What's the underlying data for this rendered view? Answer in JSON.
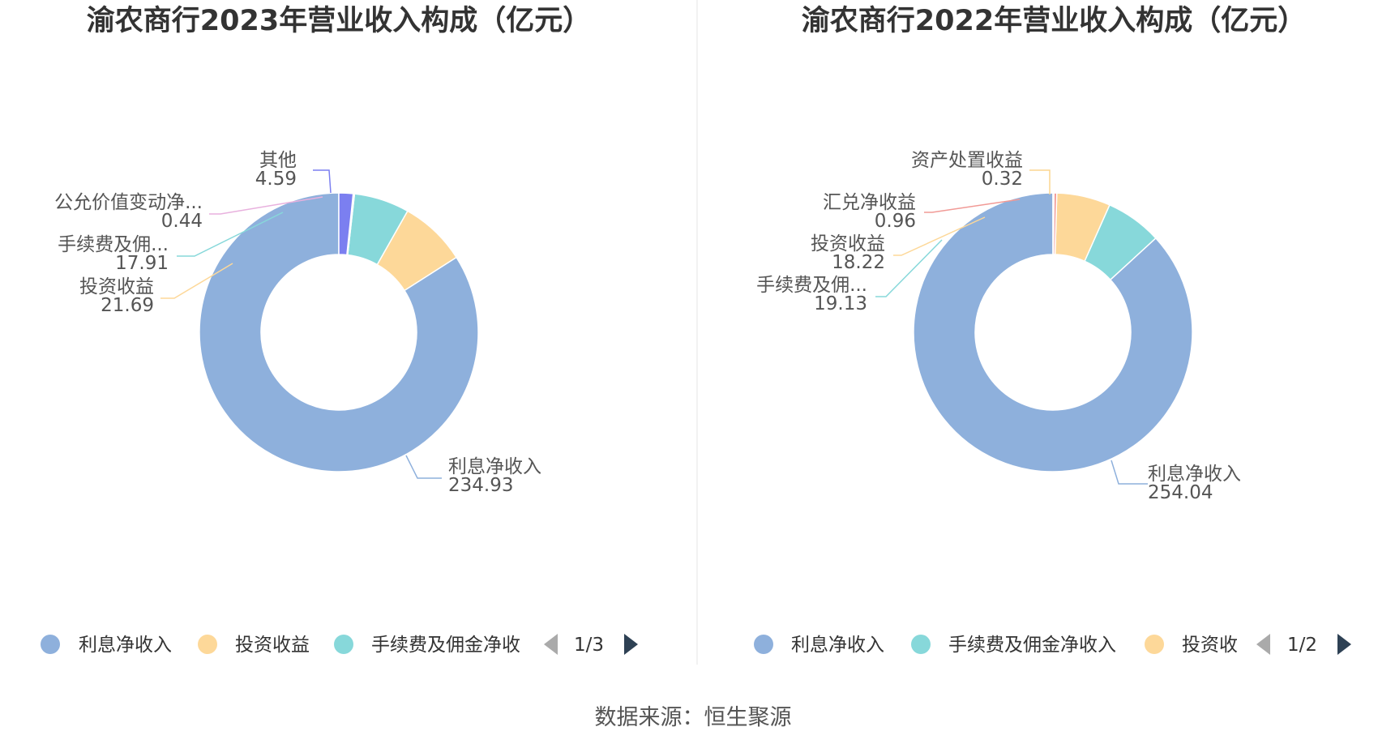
{
  "chart_data": [
    {
      "type": "pie",
      "donut": true,
      "title": "渝农商行2023年营业收入构成（亿元）",
      "series": [
        {
          "name": "利息净收入",
          "value": 234.93,
          "color": "#8eb0dc"
        },
        {
          "name": "投资收益",
          "value": 21.69,
          "color": "#fdd899"
        },
        {
          "name": "手续费及佣金净收入",
          "value": 17.91,
          "color": "#87d8da"
        },
        {
          "name": "公允价值变动净收益",
          "value": 0.44,
          "color": "#e8b1de"
        },
        {
          "name": "其他",
          "value": 4.59,
          "color": "#7b7ff0"
        }
      ],
      "labels": [
        {
          "name": "利息净收入",
          "value": "234.93"
        },
        {
          "name": "投资收益",
          "value": "21.69"
        },
        {
          "name": "手续费及佣...",
          "value": "17.91"
        },
        {
          "name": "公允价值变动净...",
          "value": "0.44"
        },
        {
          "name": "其他",
          "value": "4.59"
        }
      ],
      "legend": {
        "items": [
          "利息净收入",
          "投资收益",
          "手续费及佣金净收"
        ],
        "page": "1/3",
        "placement": "bottom"
      }
    },
    {
      "type": "pie",
      "donut": true,
      "title": "渝农商行2022年营业收入构成（亿元）",
      "series": [
        {
          "name": "利息净收入",
          "value": 254.04,
          "color": "#8eb0dc"
        },
        {
          "name": "手续费及佣金净收入",
          "value": 19.13,
          "color": "#87d8da"
        },
        {
          "name": "投资收益",
          "value": 18.22,
          "color": "#fdd899"
        },
        {
          "name": "汇兑净收益",
          "value": 0.96,
          "color": "#f19a96"
        },
        {
          "name": "资产处置收益",
          "value": 0.32,
          "color": "#fbd690"
        }
      ],
      "labels": [
        {
          "name": "利息净收入",
          "value": "254.04"
        },
        {
          "name": "手续费及佣...",
          "value": "19.13"
        },
        {
          "name": "投资收益",
          "value": "18.22"
        },
        {
          "name": "汇兑净收益",
          "value": "0.96"
        },
        {
          "name": "资产处置收益",
          "value": "0.32"
        }
      ],
      "legend": {
        "items": [
          "利息净收入",
          "手续费及佣金净收入",
          "投资收"
        ],
        "page": "1/2",
        "placement": "bottom"
      }
    }
  ],
  "source": "数据来源：恒生聚源"
}
